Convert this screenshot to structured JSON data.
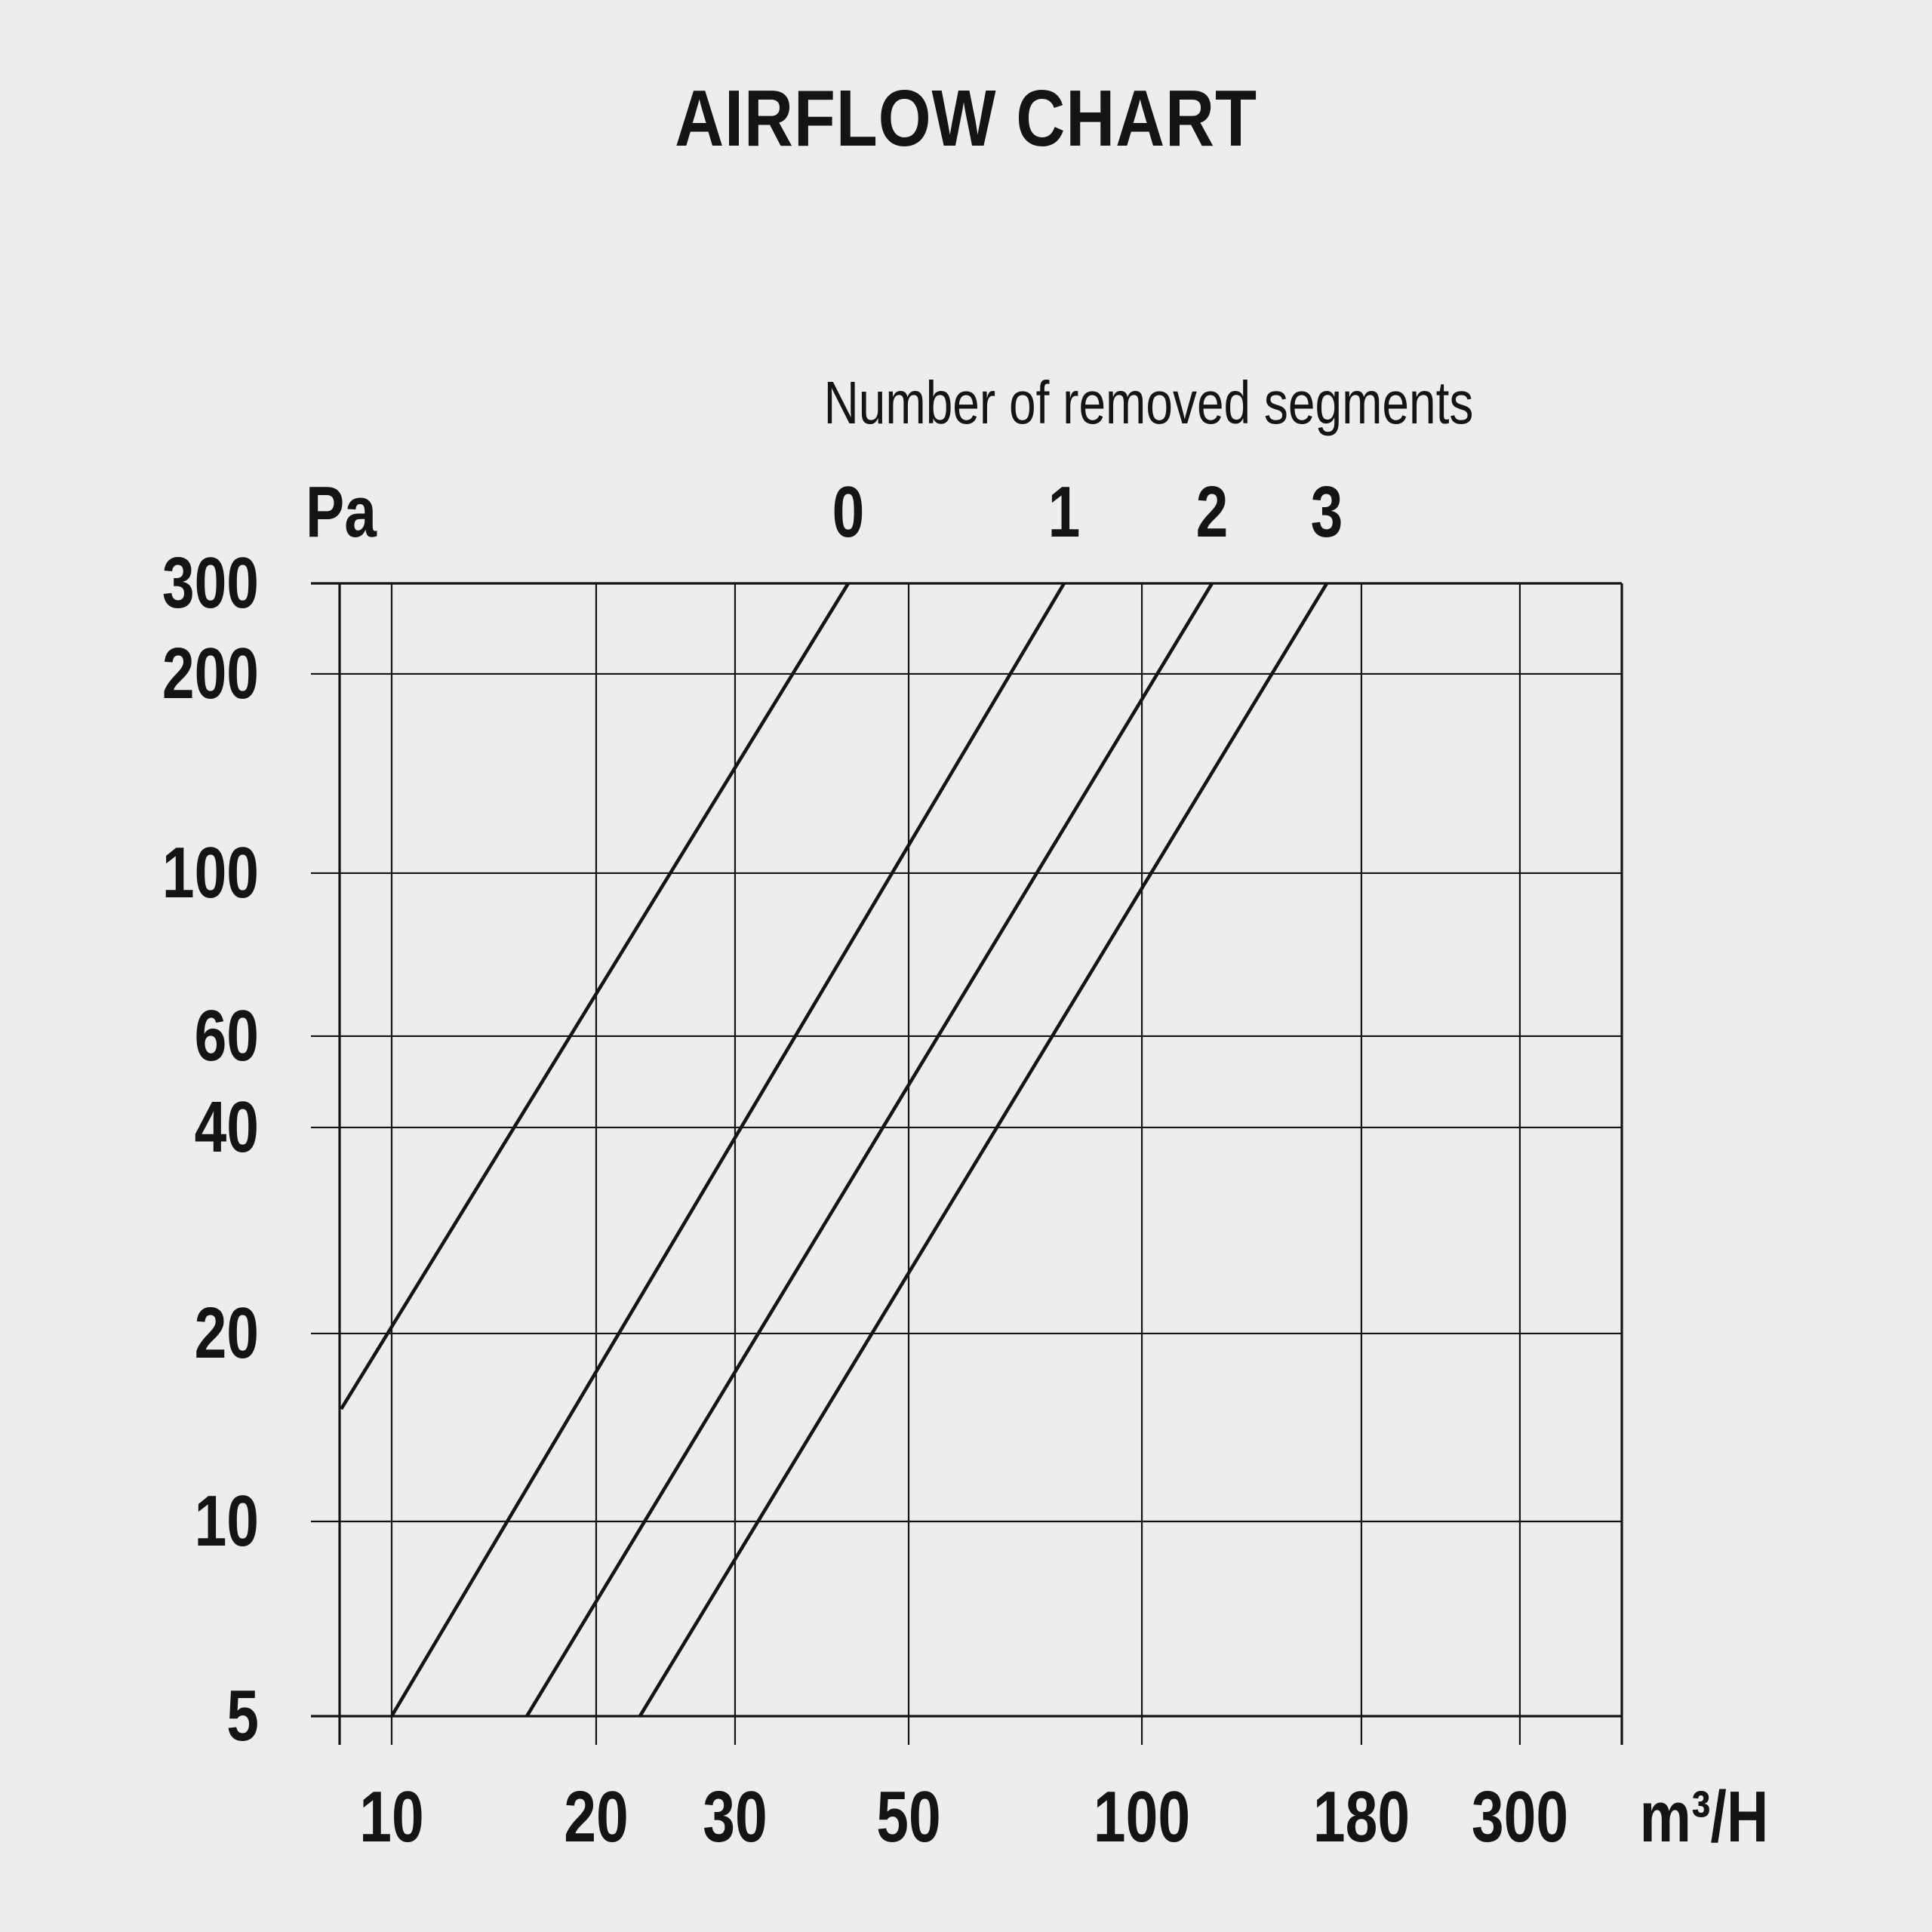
{
  "page": {
    "background_color": "#EDEDED",
    "ink_color": "#141414"
  },
  "chart_data": {
    "type": "line",
    "title": "AIRFLOW CHART",
    "top_axis_label": "Number of removed segments",
    "grid": true,
    "legend_position": "curve labels along top edge of plot",
    "x_axis": {
      "unit": "m³/H",
      "scale": "log",
      "range": [
        8.5,
        335
      ],
      "ticks": [
        {
          "value": "10",
          "f": 0.0406
        },
        {
          "value": "20",
          "f": 0.2001
        },
        {
          "value": "30",
          "f": 0.3084
        },
        {
          "value": "50",
          "f": 0.4438
        },
        {
          "value": "100",
          "f": 0.6257
        },
        {
          "value": "180",
          "f": 0.7969
        },
        {
          "value": "300",
          "f": 0.9205
        }
      ]
    },
    "y_axis": {
      "unit": "Pa",
      "scale": "log",
      "range": [
        5,
        300
      ],
      "ticks": [
        {
          "value": "300",
          "f": 0.0
        },
        {
          "value": "200",
          "f": 0.0799
        },
        {
          "value": "100",
          "f": 0.2558
        },
        {
          "value": "60",
          "f": 0.3997
        },
        {
          "value": "40",
          "f": 0.4803
        },
        {
          "value": "20",
          "f": 0.6622
        },
        {
          "value": "10",
          "f": 0.8281
        },
        {
          "value": "5",
          "f": 1.0
        }
      ]
    },
    "series": [
      {
        "label": "0",
        "segments_removed": 0,
        "points": [
          {
            "x": 8.6,
            "y": 15
          },
          {
            "x": 42,
            "y": 300
          }
        ],
        "f": [
          [
            0.0012,
            0.7289
          ],
          [
            0.3967,
            0.0
          ]
        ]
      },
      {
        "label": "1",
        "segments_removed": 1,
        "points": [
          {
            "x": 10,
            "y": 5
          },
          {
            "x": 80,
            "y": 300
          }
        ],
        "f": [
          [
            0.0406,
            1.0
          ],
          [
            0.565,
            0.0
          ]
        ]
      },
      {
        "label": "2",
        "segments_removed": 2,
        "points": [
          {
            "x": 16,
            "y": 5
          },
          {
            "x": 120,
            "y": 300
          }
        ],
        "f": [
          [
            0.146,
            1.0
          ],
          [
            0.6804,
            0.0
          ]
        ]
      },
      {
        "label": "3",
        "segments_removed": 3,
        "points": [
          {
            "x": 23,
            "y": 5
          },
          {
            "x": 165,
            "y": 300
          }
        ],
        "f": [
          [
            0.2342,
            1.0
          ],
          [
            0.7699,
            0.0
          ]
        ]
      }
    ]
  }
}
